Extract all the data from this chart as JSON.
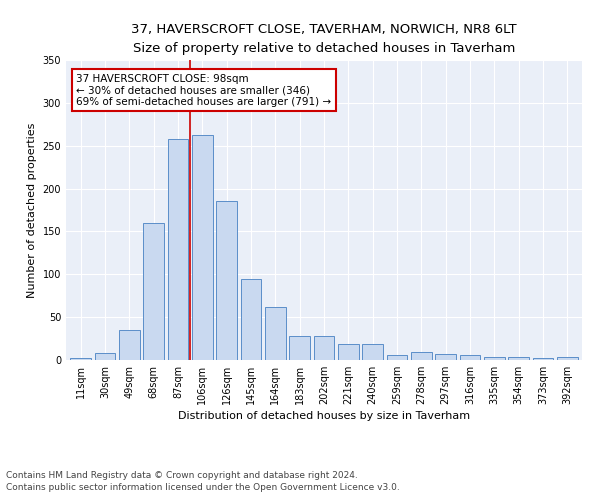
{
  "title": "37, HAVERSCROFT CLOSE, TAVERHAM, NORWICH, NR8 6LT",
  "subtitle": "Size of property relative to detached houses in Taverham",
  "xlabel": "Distribution of detached houses by size in Taverham",
  "ylabel": "Number of detached properties",
  "categories": [
    "11sqm",
    "30sqm",
    "49sqm",
    "68sqm",
    "87sqm",
    "106sqm",
    "126sqm",
    "145sqm",
    "164sqm",
    "183sqm",
    "202sqm",
    "221sqm",
    "240sqm",
    "259sqm",
    "278sqm",
    "297sqm",
    "316sqm",
    "335sqm",
    "354sqm",
    "373sqm",
    "392sqm"
  ],
  "values": [
    2,
    8,
    35,
    160,
    258,
    262,
    185,
    95,
    62,
    28,
    28,
    19,
    19,
    6,
    9,
    7,
    6,
    4,
    4,
    2,
    3
  ],
  "bar_color": "#c9d9f0",
  "bar_edge_color": "#5b8ec9",
  "vline_x_index": 4.5,
  "vline_color": "#cc0000",
  "annotation_text": "37 HAVERSCROFT CLOSE: 98sqm\n← 30% of detached houses are smaller (346)\n69% of semi-detached houses are larger (791) →",
  "annotation_box_color": "#ffffff",
  "annotation_box_edge": "#cc0000",
  "ylim": [
    0,
    350
  ],
  "yticks": [
    0,
    50,
    100,
    150,
    200,
    250,
    300,
    350
  ],
  "footer1": "Contains HM Land Registry data © Crown copyright and database right 2024.",
  "footer2": "Contains public sector information licensed under the Open Government Licence v3.0.",
  "plot_bg_color": "#eaeff8",
  "title_fontsize": 9.5,
  "subtitle_fontsize": 8.5,
  "axis_label_fontsize": 8,
  "tick_fontsize": 7,
  "annotation_fontsize": 7.5,
  "footer_fontsize": 6.5
}
